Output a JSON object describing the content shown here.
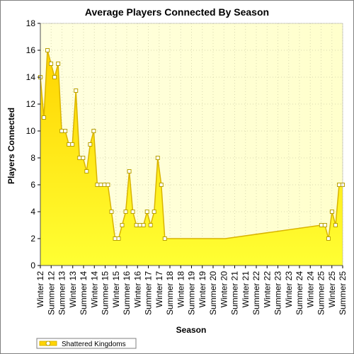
{
  "chart_data": {
    "type": "area",
    "title": "Average Players Connected By Season",
    "xlabel": "Season",
    "ylabel": "Players Connected",
    "ylim": [
      0,
      18
    ],
    "y_ticks": [
      0,
      2,
      4,
      6,
      8,
      10,
      12,
      14,
      16,
      18
    ],
    "grid": true,
    "legend_position": "bottom-left",
    "colors": {
      "fill_top": "#ffd400",
      "fill_bottom": "#ffff33",
      "line": "#d9b400",
      "plot_bg": "#ffffe0",
      "marker_fill": "#ffffff",
      "marker_stroke": "#b8a000"
    },
    "x_tick_labels": [
      "Winter 12",
      "Summer 12",
      "Summer 13",
      "Winter 13",
      "Summer 14",
      "Winter 14",
      "Summer 15",
      "Winter 15",
      "Summer 16",
      "Winter 16",
      "Summer 17",
      "Winter 17",
      "Summer 18",
      "Winter 18",
      "Summer 19",
      "Winter 19",
      "Summer 20",
      "Winter 20",
      "Summer 21",
      "Winter 21",
      "Summer 22",
      "Winter 22",
      "Summer 23",
      "Winter 23",
      "Summer 24",
      "Winter 24",
      "Summer 25",
      "Winter 25",
      "Summer 25"
    ],
    "series": [
      {
        "name": "Shattered Kingdoms",
        "x": [
          12.0,
          12.5,
          13.0,
          13.5,
          14.0,
          14.5,
          15.0,
          15.5,
          16.0,
          16.5,
          17.0,
          17.5,
          18.0,
          18.5,
          19.0,
          19.5,
          20.0,
          20.5,
          21.0,
          21.5,
          22.0,
          22.5,
          23.0,
          23.5,
          24.0,
          24.5,
          25.0,
          25.5,
          26.0,
          26.5,
          27.0,
          27.5,
          28.0,
          28.5,
          29.0,
          29.5,
          30.0,
          30.5,
          31.0,
          31.5,
          32.0,
          32.5,
          33.0,
          33.5,
          34.0,
          34.5,
          35.0,
          35.5,
          36.0,
          36.5,
          37.0,
          38.0,
          51.5,
          52.0,
          52.5,
          53.0,
          53.5,
          54.0,
          54.5
        ],
        "values": [
          14,
          11,
          16,
          15,
          14,
          15,
          10,
          10,
          9,
          9,
          13,
          8,
          8,
          7,
          9,
          10,
          6,
          6,
          6,
          6,
          4,
          2,
          2,
          3,
          4,
          7,
          4,
          3,
          3,
          3,
          4,
          3,
          4,
          8,
          6,
          2,
          2,
          2,
          2,
          2,
          2,
          2,
          2,
          2,
          2,
          2,
          2,
          2,
          2,
          2,
          2,
          2,
          3,
          3,
          2,
          4,
          3,
          6,
          6
        ],
        "markers": [
          true,
          true,
          true,
          true,
          true,
          true,
          true,
          true,
          true,
          true,
          true,
          true,
          true,
          true,
          true,
          true,
          true,
          true,
          true,
          true,
          true,
          true,
          true,
          true,
          true,
          true,
          true,
          true,
          true,
          true,
          true,
          true,
          true,
          true,
          true,
          true,
          false,
          false,
          false,
          false,
          false,
          false,
          false,
          false,
          false,
          false,
          false,
          false,
          false,
          false,
          false,
          false,
          true,
          true,
          true,
          true,
          true,
          true,
          true
        ]
      }
    ]
  }
}
